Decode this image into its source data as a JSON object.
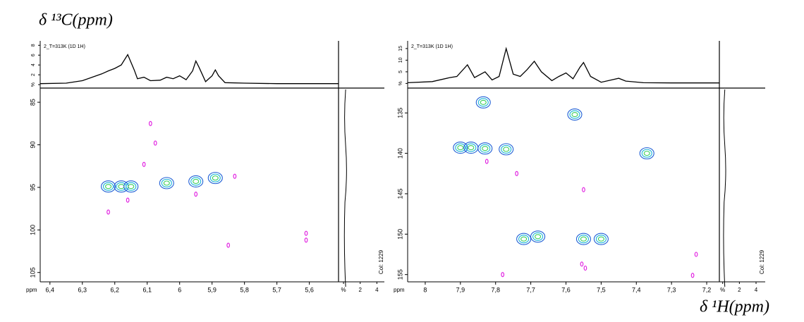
{
  "chart_data": [
    {
      "type": "contour",
      "ylabel": "δ ¹³C(ppm)",
      "label": "2_T=313K (1D 1H)",
      "axis_unit": "ppm",
      "col_label": "Col: 1229",
      "xlim": [
        6.43,
        5.51
      ],
      "xticks": [
        {
          "value": 6.4,
          "label": "6,4"
        },
        {
          "value": 6.3,
          "label": "6,3"
        },
        {
          "value": 6.2,
          "label": "6,2"
        },
        {
          "value": 6.1,
          "label": "6,1"
        },
        6,
        {
          "value": 5.9,
          "label": "5,9"
        },
        {
          "value": 5.8,
          "label": "5,8"
        },
        {
          "value": 5.7,
          "label": "5,7"
        },
        {
          "value": 5.6,
          "label": "5,6"
        }
      ],
      "ylim": [
        83.5,
        106.1
      ],
      "yticks": [
        85,
        90,
        95,
        100,
        105
      ],
      "top_ylim": [
        -0.7,
        8.9
      ],
      "top_yticks": [
        {
          "value": 0,
          "label": "%"
        },
        2,
        4,
        6,
        8
      ],
      "side_xlim": [
        -0.6,
        4.9
      ],
      "side_xticks": [
        {
          "value": 0,
          "label": "%"
        },
        2,
        4
      ],
      "projection": {
        "x": [
          6.43,
          6.35,
          6.3,
          6.27,
          6.24,
          6.22,
          6.2,
          6.18,
          6.16,
          6.14,
          6.13,
          6.11,
          6.09,
          6.06,
          6.04,
          6.02,
          6.0,
          5.98,
          5.96,
          5.95,
          5.94,
          5.92,
          5.9,
          5.89,
          5.88,
          5.86,
          5.8,
          5.7,
          5.6,
          5.51
        ],
        "values": [
          0.2,
          0.3,
          0.8,
          1.5,
          2.2,
          2.8,
          3.3,
          4.0,
          6.1,
          3.0,
          1.2,
          1.5,
          0.8,
          0.9,
          1.5,
          1.2,
          1.8,
          1.0,
          2.8,
          4.8,
          3.5,
          0.6,
          1.8,
          3.0,
          1.8,
          0.4,
          0.3,
          0.2,
          0.2,
          0.2
        ]
      },
      "series": [
        {
          "color": "#1f5fd6",
          "x": [
            6.22,
            6.18,
            6.15,
            6.04,
            5.95,
            5.89
          ],
          "values": [
            94.9,
            94.9,
            94.9,
            94.5,
            94.3,
            93.9
          ]
        },
        {
          "color": "#e01be0",
          "x": [
            6.09,
            6.075,
            6.11,
            5.83,
            6.16,
            5.95,
            6.22,
            5.85,
            5.61,
            5.61
          ],
          "values": [
            87.5,
            89.8,
            92.3,
            93.7,
            96.5,
            95.8,
            97.9,
            101.8,
            100.4,
            101.2
          ]
        }
      ]
    },
    {
      "type": "contour",
      "xlabel": "δ ¹H(ppm)",
      "label": "2_T=313K (1D 1H)",
      "axis_unit": "ppm",
      "col_label": "Col: 1229",
      "xlim": [
        8.05,
        7.164
      ],
      "xticks": [
        8,
        {
          "value": 7.9,
          "label": "7,9"
        },
        {
          "value": 7.8,
          "label": "7,8"
        },
        {
          "value": 7.7,
          "label": "7,7"
        },
        {
          "value": 7.6,
          "label": "7,6"
        },
        {
          "value": 7.5,
          "label": "7,5"
        },
        {
          "value": 7.4,
          "label": "7,4"
        },
        {
          "value": 7.3,
          "label": "7,3"
        },
        {
          "value": 7.2,
          "label": "7,2"
        }
      ],
      "ylim": [
        132.1,
        155.9
      ],
      "yticks": [
        135,
        140,
        145,
        150,
        155
      ],
      "top_ylim": [
        -2,
        18.3
      ],
      "top_yticks": [
        {
          "value": 0,
          "label": "%"
        },
        5,
        10,
        15
      ],
      "side_xlim": [
        -0.4,
        5.1
      ],
      "side_xticks": [
        {
          "value": 0,
          "label": "%"
        },
        2,
        4
      ],
      "projection": {
        "x": [
          8.05,
          7.98,
          7.93,
          7.91,
          7.88,
          7.86,
          7.83,
          7.81,
          7.79,
          7.77,
          7.75,
          7.73,
          7.71,
          7.69,
          7.67,
          7.64,
          7.62,
          7.6,
          7.58,
          7.56,
          7.55,
          7.53,
          7.5,
          7.47,
          7.45,
          7.43,
          7.38,
          7.3,
          7.164
        ],
        "values": [
          0.3,
          0.8,
          2.5,
          3.0,
          8.0,
          2.5,
          5.0,
          1.5,
          3.0,
          15.0,
          4.0,
          3.0,
          6.0,
          9.5,
          5.0,
          1.2,
          3.0,
          4.5,
          2.0,
          7.0,
          9.0,
          3.0,
          0.5,
          1.5,
          2.2,
          1.0,
          0.3,
          0.2,
          0.2
        ]
      },
      "series": [
        {
          "color": "#1f5fd6",
          "x": [
            7.9,
            7.87,
            7.83,
            7.77,
            7.835,
            7.575,
            7.37,
            7.72,
            7.68,
            7.55,
            7.5
          ],
          "values": [
            139.3,
            139.3,
            139.4,
            139.5,
            133.7,
            135.2,
            140.0,
            150.6,
            150.3,
            150.6,
            150.6
          ]
        },
        {
          "color": "#e01be0",
          "x": [
            7.825,
            7.55,
            7.23,
            7.74,
            7.555,
            7.545,
            7.78,
            7.24
          ],
          "values": [
            141.0,
            144.5,
            152.5,
            142.5,
            153.7,
            154.2,
            155.0,
            155.1
          ]
        }
      ]
    }
  ]
}
